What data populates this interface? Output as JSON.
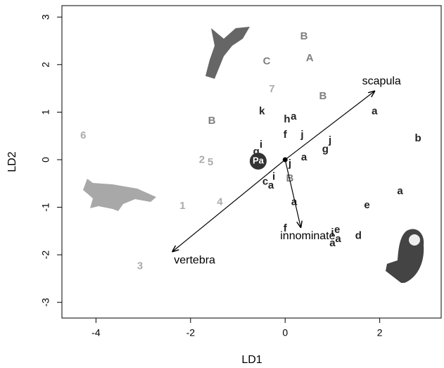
{
  "chart_data": {
    "type": "scatter",
    "xlabel": "LD1",
    "ylabel": "LD2",
    "xlim": [
      -4.72,
      3.3
    ],
    "ylim": [
      -3.33,
      3.24
    ],
    "xticks": [
      -4,
      -2,
      0,
      2
    ],
    "yticks": [
      -3,
      -2,
      -1,
      0,
      1,
      2,
      3
    ],
    "grid": false,
    "series": [
      {
        "color": "#222222",
        "labels": [
          "a",
          "b",
          "a",
          "e",
          "d",
          "i",
          "e",
          "a",
          "a",
          "f",
          "a",
          "j",
          "a",
          "g",
          "j",
          "j",
          "f",
          "h",
          "a",
          "k",
          "i",
          "g",
          "c",
          "a",
          "i"
        ],
        "x": [
          1.89,
          2.81,
          2.43,
          1.73,
          1.55,
          1.0,
          1.1,
          1.12,
          1.0,
          0.0,
          0.19,
          0.1,
          0.4,
          0.85,
          0.95,
          0.36,
          0.0,
          0.04,
          0.18,
          -0.49,
          -0.51,
          -0.61,
          -0.42,
          -0.3,
          -0.24
        ],
        "values": [
          1.01,
          0.44,
          -0.67,
          -0.96,
          -1.61,
          -1.54,
          -1.48,
          -1.67,
          -1.76,
          -1.45,
          -0.9,
          -0.09,
          0.04,
          0.21,
          0.4,
          0.52,
          0.52,
          0.84,
          0.9,
          1.01,
          0.31,
          0.16,
          -0.47,
          -0.55,
          -0.36
        ]
      },
      {
        "color": "#7f7f7f",
        "labels": [
          "B",
          "A",
          "C",
          "B",
          "B",
          "B"
        ],
        "x": [
          0.4,
          0.52,
          -0.39,
          0.8,
          -1.55,
          0.1
        ],
        "values": [
          2.59,
          2.13,
          2.06,
          1.33,
          0.81,
          -0.4
        ]
      },
      {
        "color": "#ababab",
        "labels": [
          "6",
          "7",
          "2",
          "5",
          "4",
          "1",
          "3"
        ],
        "x": [
          -4.27,
          -0.28,
          -1.76,
          -1.58,
          -1.38,
          -2.17,
          -3.07
        ],
        "values": [
          0.5,
          1.48,
          -0.01,
          -0.06,
          -0.9,
          -0.98,
          -2.24
        ]
      }
    ],
    "highlight": {
      "label": "Pa",
      "x": -0.57,
      "y": -0.03
    },
    "arrows": [
      {
        "label": "scapula",
        "x": 1.89,
        "y": 1.44
      },
      {
        "label": "vertebra",
        "x": -2.38,
        "y": -1.93
      },
      {
        "label": "innominate",
        "x": 0.33,
        "y": -1.42
      }
    ]
  }
}
